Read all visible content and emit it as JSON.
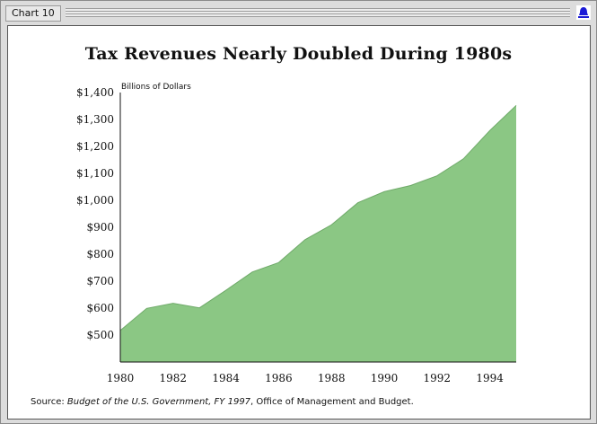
{
  "window": {
    "tab_label": "Chart 10",
    "close_icon": "bell-close-icon",
    "accent": "#1b1bd6"
  },
  "chart_data": {
    "type": "area",
    "title": "Tax Revenues Nearly Doubled During 1980s",
    "ylabel": "Billions of Dollars",
    "xlabel": "",
    "fill_color": "#8bc784",
    "ylim": [
      400,
      1400
    ],
    "xlim": [
      1980,
      1995
    ],
    "grid": false,
    "x_tick_labels": [
      "1980",
      "1982",
      "1984",
      "1986",
      "1988",
      "1990",
      "1992",
      "1994"
    ],
    "y_tick_labels": [
      "$500",
      "$600",
      "$700",
      "$800",
      "$900",
      "$1,000",
      "$1,100",
      "$1,200",
      "$1,300",
      "$1,400"
    ],
    "y_tick_values": [
      500,
      600,
      700,
      800,
      900,
      1000,
      1100,
      1200,
      1300,
      1400
    ],
    "series": [
      {
        "x": [
          1980,
          1981,
          1982,
          1983,
          1984,
          1985,
          1986,
          1987,
          1988,
          1989,
          1990,
          1991,
          1992,
          1993,
          1994,
          1995
        ],
        "values": [
          517,
          599,
          618,
          601,
          666,
          734,
          769,
          854,
          909,
          991,
          1032,
          1055,
          1091,
          1154,
          1259,
          1352
        ]
      }
    ]
  },
  "source": {
    "prefix": "Source: ",
    "publication": "Budget of the U.S. Government, FY 1997",
    "suffix": ", Office of Management and Budget."
  }
}
